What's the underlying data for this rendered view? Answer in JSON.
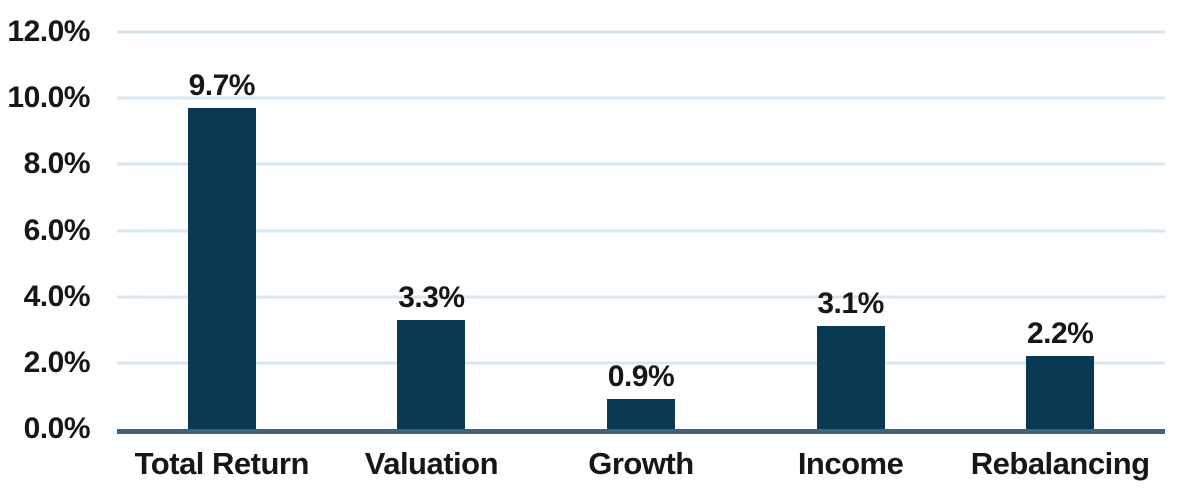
{
  "chart_data": {
    "type": "bar",
    "title": "",
    "xlabel": "",
    "ylabel": "",
    "categories": [
      "Total Return",
      "Valuation",
      "Growth",
      "Income",
      "Rebalancing"
    ],
    "values": [
      9.7,
      3.3,
      0.9,
      3.1,
      2.2
    ],
    "data_labels": [
      "9.7%",
      "3.3%",
      "0.9%",
      "3.1%",
      "2.2%"
    ],
    "ylim": [
      0,
      12
    ],
    "y_tick_step": 2,
    "y_ticks": [
      0,
      2,
      4,
      6,
      8,
      10,
      12
    ],
    "y_tick_labels": [
      "0.0%",
      "2.0%",
      "4.0%",
      "6.0%",
      "8.0%",
      "10.0%",
      "12.0%"
    ],
    "grid": true,
    "legend": false,
    "colors": {
      "bar": "#0a3954",
      "gridline": "#d9e7f1",
      "axis_line": "#3f657c",
      "text": "#171717",
      "background": "#ffffff"
    }
  }
}
